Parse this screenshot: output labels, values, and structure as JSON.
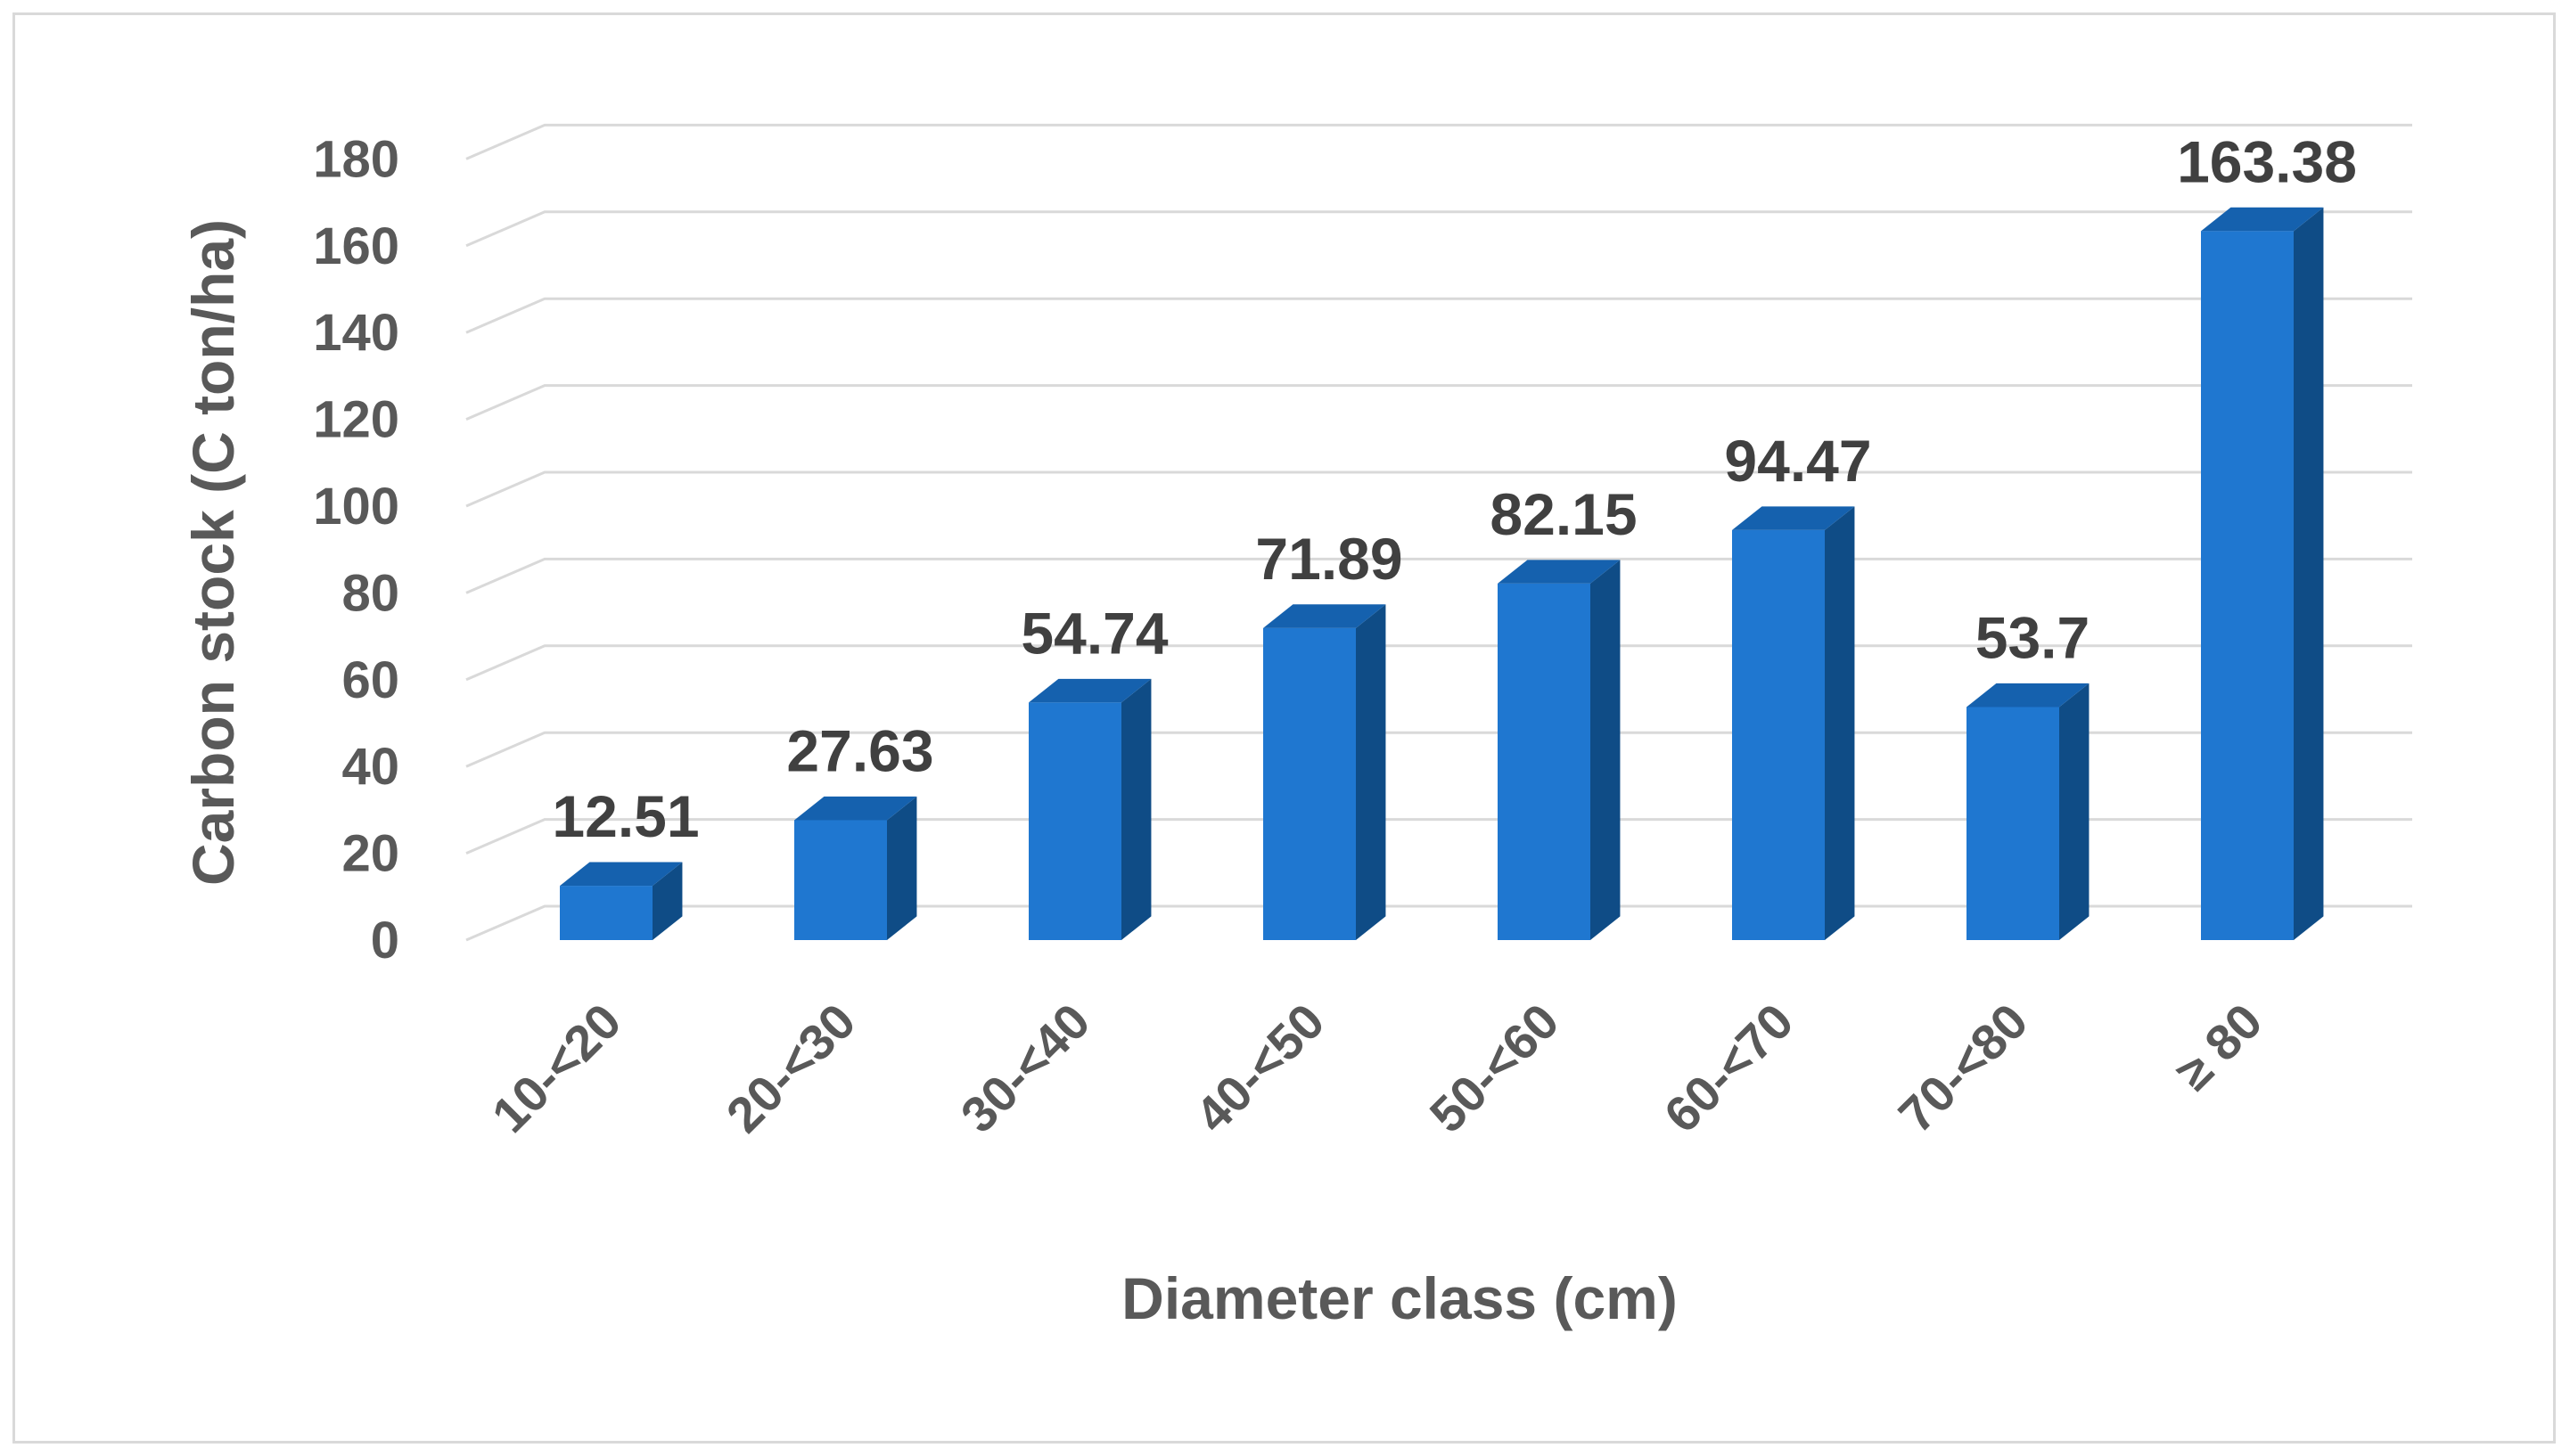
{
  "chart_data": {
    "type": "bar",
    "style": "3d-column",
    "categories": [
      "10-<20",
      "20-<30",
      "30-<40",
      "40-<50",
      "50-<60",
      "60-<70",
      "70-<80",
      "≥ 80"
    ],
    "values": [
      12.51,
      27.63,
      54.74,
      71.89,
      82.15,
      94.47,
      53.7,
      163.38
    ],
    "data_labels": [
      "12.51",
      "27.63",
      "54.74",
      "71.89",
      "82.15",
      "94.47",
      "53.7",
      "163.38"
    ],
    "xlabel": "Diameter class (cm)",
    "ylabel": "Carbon stock (C ton/ha)",
    "ylim": [
      0,
      180
    ],
    "yticks": [
      "0",
      "20",
      "40",
      "60",
      "80",
      "100",
      "120",
      "140",
      "160",
      "180"
    ],
    "grid": true,
    "legend": "none",
    "colors": {
      "bar_front": "#1F77D0",
      "bar_side": "#0F4C86",
      "bar_top": "#1561AE",
      "gridline": "#d9d9d9",
      "frame": "#d9d9d9"
    }
  }
}
